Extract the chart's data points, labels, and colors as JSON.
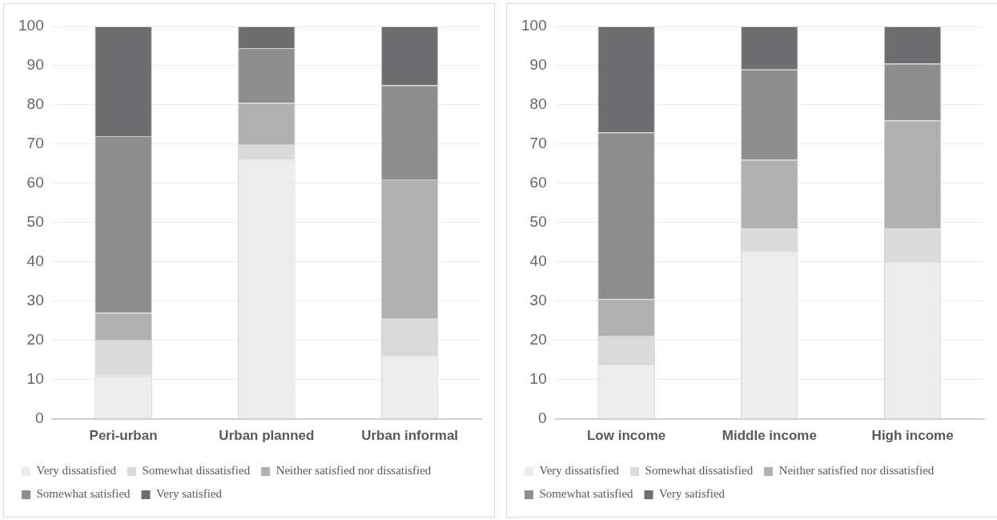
{
  "chart_data": [
    {
      "type": "bar",
      "stacked": true,
      "categories": [
        "Peri-urban",
        "Urban planned",
        "Urban informal"
      ],
      "ylim": [
        0,
        100
      ],
      "yticks": [
        0,
        10,
        20,
        30,
        40,
        50,
        60,
        70,
        80,
        90,
        100
      ],
      "grid": "y",
      "legend": "bottom",
      "series": [
        {
          "name": "Very dissatisfied",
          "color": "#ececec",
          "values": [
            11,
            66,
            16
          ]
        },
        {
          "name": "Somewhat dissatisfied",
          "color": "#dadada",
          "values": [
            9,
            4,
            9.5
          ]
        },
        {
          "name": "Neither satisfied nor dissatisfied",
          "color": "#b0b0b0",
          "values": [
            7,
            10.5,
            35.5
          ]
        },
        {
          "name": "Somewhat satisfied",
          "color": "#8e8e8e",
          "values": [
            45,
            14,
            24
          ]
        },
        {
          "name": "Very satisfied",
          "color": "#6e6e70",
          "values": [
            28,
            5.5,
            15
          ]
        }
      ]
    },
    {
      "type": "bar",
      "stacked": true,
      "categories": [
        "Low income",
        "Middle income",
        "High income"
      ],
      "ylim": [
        0,
        100
      ],
      "yticks": [
        0,
        10,
        20,
        30,
        40,
        50,
        60,
        70,
        80,
        90,
        100
      ],
      "grid": "y",
      "legend": "bottom",
      "series": [
        {
          "name": "Very dissatisfied",
          "color": "#ececec",
          "values": [
            14,
            42.5,
            40
          ]
        },
        {
          "name": "Somewhat dissatisfied",
          "color": "#dadada",
          "values": [
            7,
            6,
            8.5
          ]
        },
        {
          "name": "Neither satisfied nor dissatisfied",
          "color": "#b0b0b0",
          "values": [
            9.5,
            17.5,
            27.5
          ]
        },
        {
          "name": "Somewhat satisfied",
          "color": "#8e8e8e",
          "values": [
            42.5,
            23,
            14.5
          ]
        },
        {
          "name": "Very satisfied",
          "color": "#6e6e70",
          "values": [
            27,
            11,
            9.5
          ]
        }
      ]
    }
  ]
}
